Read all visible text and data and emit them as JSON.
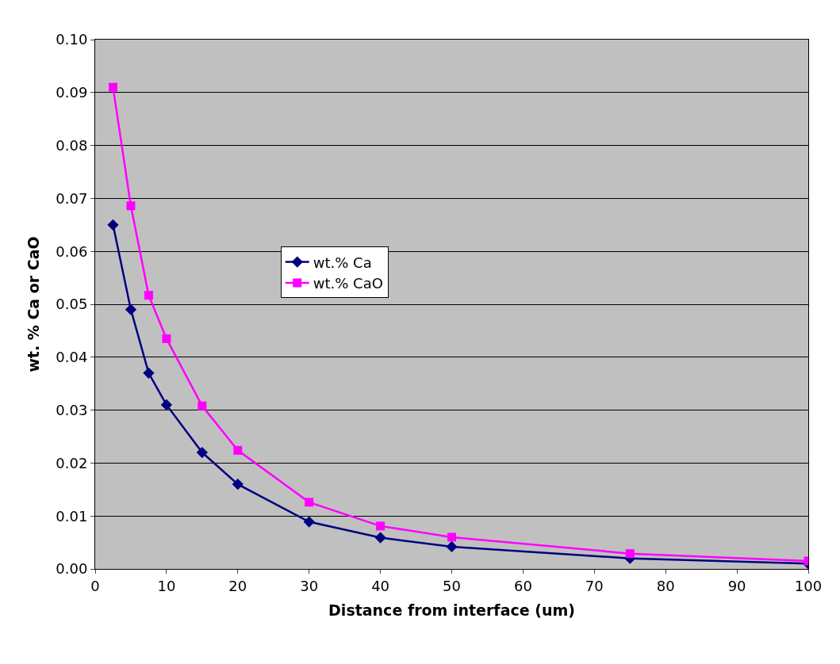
{
  "chart_data": {
    "type": "line",
    "xlabel": "Distance from interface (um)",
    "ylabel": "wt. % Ca or CaO",
    "x": [
      2.5,
      5,
      7.5,
      10,
      15,
      20,
      30,
      40,
      50,
      75,
      100
    ],
    "series": [
      {
        "name": "wt.% Ca",
        "color": "#000080",
        "marker": "diamond",
        "values": [
          0.065,
          0.049,
          0.037,
          0.031,
          0.022,
          0.016,
          0.0089,
          0.0059,
          0.0042,
          0.002,
          0.001
        ]
      },
      {
        "name": "wt.% CaO",
        "color": "#ff00ff",
        "marker": "square",
        "values": [
          0.091,
          0.0686,
          0.0517,
          0.0435,
          0.0308,
          0.0224,
          0.0126,
          0.0081,
          0.006,
          0.0029,
          0.0015
        ]
      }
    ],
    "xlim": [
      0,
      100
    ],
    "xticks": [
      0,
      10,
      20,
      30,
      40,
      50,
      60,
      70,
      80,
      90,
      100
    ],
    "ylim": [
      0,
      0.1
    ],
    "yticks": [
      {
        "value": 0,
        "label": "0.00"
      },
      {
        "value": 0.01,
        "label": "0.01"
      },
      {
        "value": 0.02,
        "label": "0.02"
      },
      {
        "value": 0.03,
        "label": "0.03"
      },
      {
        "value": 0.04,
        "label": "0.04"
      },
      {
        "value": 0.05,
        "label": "0.05"
      },
      {
        "value": 0.06,
        "label": "0.06"
      },
      {
        "value": 0.07,
        "label": "0.07"
      },
      {
        "value": 0.08,
        "label": "0.08"
      },
      {
        "value": 0.09,
        "label": "0.09"
      },
      {
        "value": 0.1,
        "label": "0.10"
      }
    ],
    "grid": "y",
    "legend": "left",
    "line_style": "solid"
  }
}
